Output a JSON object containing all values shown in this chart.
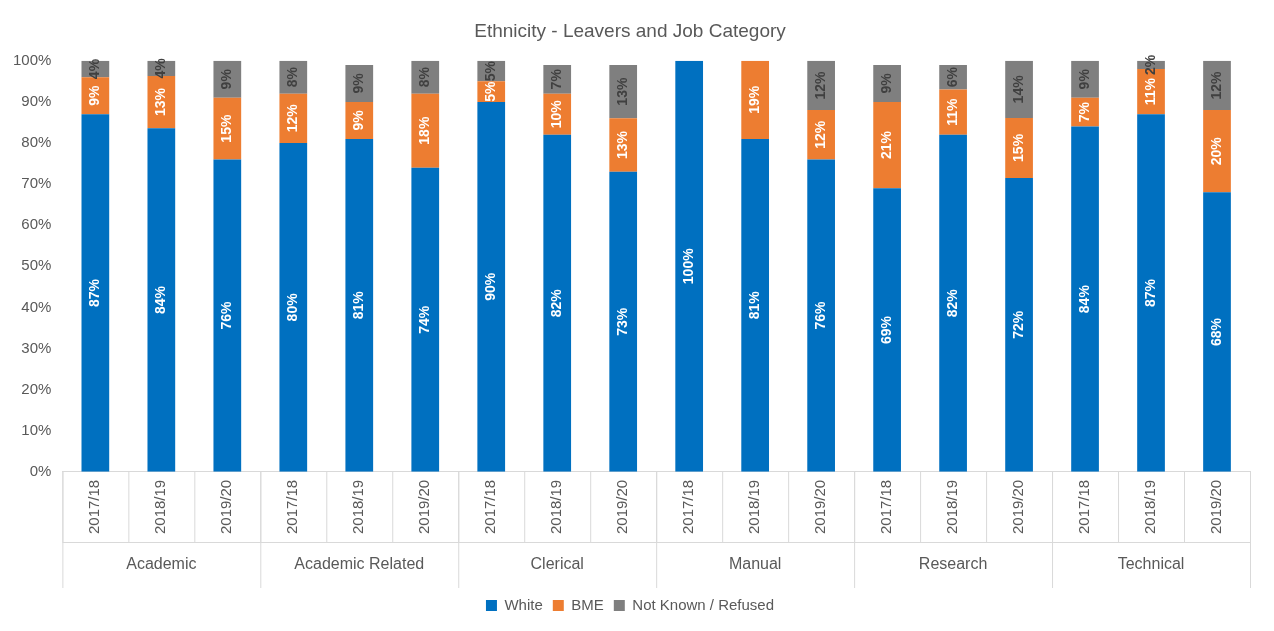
{
  "chart_data": {
    "type": "bar",
    "title": "Ethnicity - Leavers and Job Category",
    "stacked": true,
    "categories": [
      "2017/18",
      "2018/19",
      "2019/20",
      "2017/18",
      "2018/19",
      "2019/20",
      "2017/18",
      "2018/19",
      "2019/20",
      "2017/18",
      "2018/19",
      "2019/20",
      "2017/18",
      "2018/19",
      "2019/20",
      "2017/18",
      "2018/19",
      "2019/20"
    ],
    "annotations": [
      "Academic",
      "Academic Related",
      "Clerical",
      "Manual",
      "Research",
      "Technical"
    ],
    "series": [
      {
        "name": "White",
        "color": "#0070c0",
        "values": [
          87,
          83.6,
          76,
          80,
          81,
          74,
          90,
          82,
          73,
          100,
          81,
          76,
          69,
          82,
          71.5,
          84,
          87,
          68
        ],
        "value_labels": [
          "87%",
          "84%",
          "76%",
          "80%",
          "81%",
          "74%",
          "90%",
          "82%",
          "73%",
          "100%",
          "81%",
          "76%",
          "69%",
          "82%",
          "72%",
          "84%",
          "87%",
          "68%"
        ]
      },
      {
        "name": "BME",
        "color": "#ed7d31",
        "values": [
          9,
          12.7,
          15,
          12,
          9,
          18,
          5,
          10,
          13,
          0,
          19,
          12,
          21,
          11,
          14.6,
          7,
          11,
          20
        ],
        "value_labels": [
          "9%",
          "13%",
          "15%",
          "12%",
          "9%",
          "18%",
          "5%",
          "10%",
          "13%",
          null,
          "19%",
          "12%",
          "21%",
          "11%",
          "15%",
          "7%",
          "11%",
          "20%"
        ]
      },
      {
        "name": "Not Known / Refused",
        "color": "#7f7f7f",
        "values": [
          4,
          3.7,
          9,
          8,
          9,
          8,
          5,
          7,
          13,
          0,
          0,
          12,
          9,
          6,
          13.9,
          9,
          2,
          12
        ],
        "value_labels": [
          "4%",
          "4%",
          "9%",
          "8%",
          "9%",
          "8%",
          "5%",
          "7%",
          "13%",
          null,
          null,
          "12%",
          "9%",
          "6%",
          "14%",
          "9%",
          "2%",
          "12%"
        ]
      }
    ],
    "ylim": [
      0,
      100
    ],
    "yticks": [
      {
        "value": 0,
        "label": "0%"
      },
      {
        "value": 10,
        "label": "10%"
      },
      {
        "value": 20,
        "label": "20%"
      },
      {
        "value": 30,
        "label": "30%"
      },
      {
        "value": 40,
        "label": "40%"
      },
      {
        "value": 50,
        "label": "50%"
      },
      {
        "value": 60,
        "label": "60%"
      },
      {
        "value": 70,
        "label": "70%"
      },
      {
        "value": 80,
        "label": "80%"
      },
      {
        "value": 90,
        "label": "90%"
      },
      {
        "value": 100,
        "label": "100%"
      }
    ],
    "grid": false,
    "legend": "bottom"
  }
}
